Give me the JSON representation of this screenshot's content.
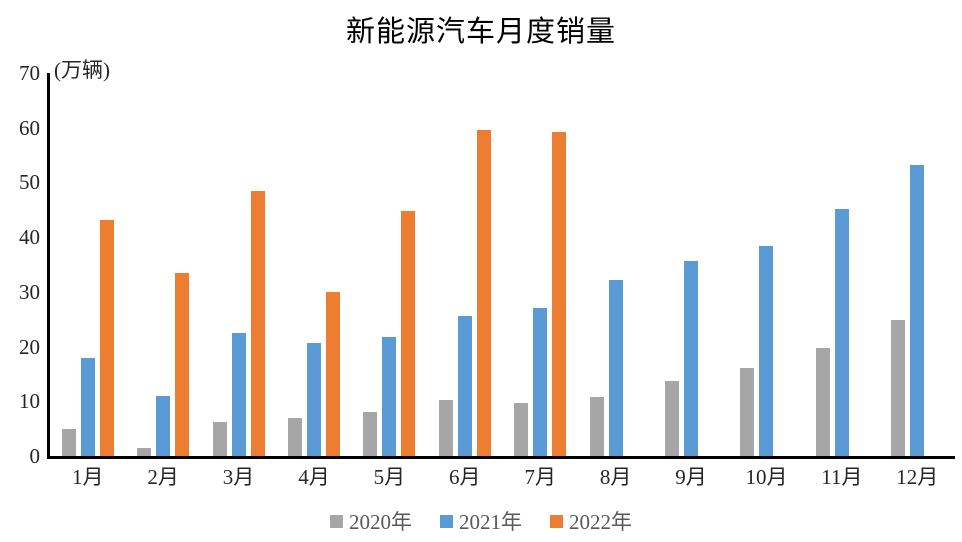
{
  "title": "新能源汽车月度销量",
  "y_axis": {
    "unit_label": "(万辆)",
    "ticks": [
      0,
      10,
      20,
      30,
      40,
      50,
      60,
      70
    ],
    "max": 70
  },
  "chart_data": {
    "type": "bar",
    "title": "新能源汽车月度销量",
    "ylabel": "(万辆)",
    "xlabel": "",
    "ylim": [
      0,
      70
    ],
    "y_ticks": [
      0,
      10,
      20,
      30,
      40,
      50,
      60,
      70
    ],
    "grid": false,
    "legend_position": "bottom",
    "categories": [
      "1月",
      "2月",
      "3月",
      "4月",
      "5月",
      "6月",
      "7月",
      "8月",
      "9月",
      "10月",
      "11月",
      "12月"
    ],
    "series": [
      {
        "name": "2020年",
        "color": "#A6A6A6",
        "values": [
          5.0,
          1.4,
          6.3,
          7.0,
          8.0,
          10.2,
          9.7,
          10.8,
          13.8,
          16.0,
          19.8,
          24.8
        ]
      },
      {
        "name": "2021年",
        "color": "#5B9BD5",
        "values": [
          17.9,
          11.0,
          22.5,
          20.6,
          21.7,
          25.6,
          27.1,
          32.1,
          35.7,
          38.4,
          45.1,
          53.1
        ]
      },
      {
        "name": "2022年",
        "color": "#ED7D31",
        "values": [
          43.1,
          33.4,
          48.4,
          29.9,
          44.7,
          59.6,
          59.3,
          null,
          null,
          null,
          null,
          null
        ]
      }
    ]
  }
}
